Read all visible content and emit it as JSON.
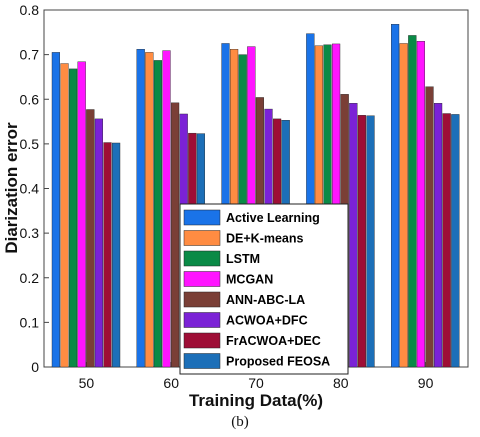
{
  "caption": "(b)",
  "chart_data": {
    "type": "bar",
    "xlabel": "Training Data(%)",
    "ylabel": "Diarization error",
    "categories": [
      "50",
      "60",
      "70",
      "80",
      "90"
    ],
    "ylim": [
      0,
      0.8
    ],
    "yticks": [
      "0",
      "0.1",
      "0.2",
      "0.3",
      "0.4",
      "0.5",
      "0.6",
      "0.7",
      "0.8"
    ],
    "legend_position": "center-bottom",
    "grid": false,
    "series": [
      {
        "name": "Active Learning",
        "color": "#1a73e8",
        "values": [
          0.705,
          0.712,
          0.725,
          0.747,
          0.768
        ]
      },
      {
        "name": "DE+K-means",
        "color": "#ff8c42",
        "values": [
          0.68,
          0.705,
          0.712,
          0.72,
          0.725
        ]
      },
      {
        "name": "LSTM",
        "color": "#0a8a46",
        "values": [
          0.668,
          0.687,
          0.7,
          0.722,
          0.743
        ]
      },
      {
        "name": "MCGAN",
        "color": "#ff14ff",
        "values": [
          0.684,
          0.709,
          0.718,
          0.724,
          0.73
        ]
      },
      {
        "name": "ANN-ABC-LA",
        "color": "#7a3f36",
        "values": [
          0.577,
          0.592,
          0.604,
          0.611,
          0.628
        ]
      },
      {
        "name": "ACWOA+DFC",
        "color": "#7b22d6",
        "values": [
          0.556,
          0.567,
          0.578,
          0.591,
          0.591
        ]
      },
      {
        "name": "FrACWOA+DEC",
        "color": "#9e0e36",
        "values": [
          0.503,
          0.524,
          0.556,
          0.564,
          0.568
        ]
      },
      {
        "name": "Proposed FEOSA",
        "color": "#1c6fb8",
        "values": [
          0.502,
          0.523,
          0.553,
          0.563,
          0.566
        ]
      }
    ]
  }
}
